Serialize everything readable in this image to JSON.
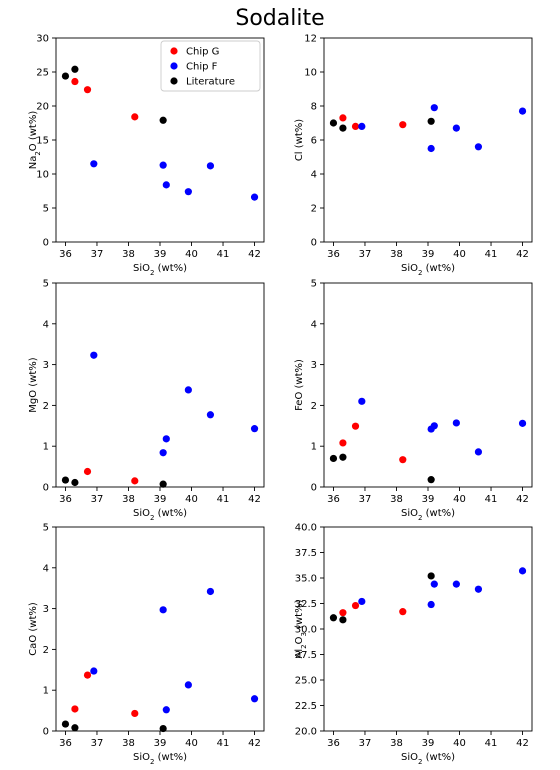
{
  "figure": {
    "title": "Sodalite"
  },
  "legend": {
    "placement": "top-right of first panel",
    "entries": [
      {
        "name": "Chip G",
        "color": "#ff0000"
      },
      {
        "name": "Chip F",
        "color": "#0000ff"
      },
      {
        "name": "Literature",
        "color": "#000000"
      }
    ]
  },
  "colors": {
    "chip_g": "#ff0000",
    "chip_f": "#0000ff",
    "literature": "#000000"
  },
  "chart_data": [
    {
      "type": "scatter",
      "xlabel": "SiO2 (wt%)",
      "ylabel": "Na2O (wt%)",
      "xlim": [
        35.7,
        42.3
      ],
      "ylim": [
        0,
        30
      ],
      "xticks": [
        "36",
        "37",
        "38",
        "39",
        "40",
        "41",
        "42"
      ],
      "yticks": [
        "0",
        "5",
        "10",
        "15",
        "20",
        "25",
        "30"
      ],
      "series": [
        {
          "name": "Chip G",
          "x": [
            36.3,
            36.7,
            38.2
          ],
          "y": [
            23.6,
            22.4,
            18.4
          ]
        },
        {
          "name": "Chip F",
          "x": [
            36.9,
            39.1,
            39.2,
            39.9,
            40.6,
            42.0
          ],
          "y": [
            11.5,
            11.3,
            8.4,
            7.4,
            11.2,
            6.6
          ]
        },
        {
          "name": "Literature",
          "x": [
            36.0,
            36.3,
            39.1
          ],
          "y": [
            24.4,
            25.4,
            17.9
          ]
        }
      ]
    },
    {
      "type": "scatter",
      "xlabel": "SiO2 (wt%)",
      "ylabel": "Cl (wt%)",
      "xlim": [
        35.7,
        42.3
      ],
      "ylim": [
        0,
        12
      ],
      "xticks": [
        "36",
        "37",
        "38",
        "39",
        "40",
        "41",
        "42"
      ],
      "yticks": [
        "0",
        "2",
        "4",
        "6",
        "8",
        "10",
        "12"
      ],
      "series": [
        {
          "name": "Chip G",
          "x": [
            36.3,
            36.7,
            38.2
          ],
          "y": [
            7.3,
            6.8,
            6.9
          ]
        },
        {
          "name": "Chip F",
          "x": [
            36.9,
            39.1,
            39.2,
            39.9,
            40.6,
            42.0
          ],
          "y": [
            6.8,
            5.5,
            7.9,
            6.7,
            5.6,
            7.7
          ]
        },
        {
          "name": "Literature",
          "x": [
            36.0,
            36.3,
            39.1
          ],
          "y": [
            7.0,
            6.7,
            7.1
          ]
        }
      ]
    },
    {
      "type": "scatter",
      "xlabel": "SiO2 (wt%)",
      "ylabel": "MgO (wt%)",
      "xlim": [
        35.7,
        42.3
      ],
      "ylim": [
        0,
        5
      ],
      "xticks": [
        "36",
        "37",
        "38",
        "39",
        "40",
        "41",
        "42"
      ],
      "yticks": [
        "0",
        "1",
        "2",
        "3",
        "4",
        "5"
      ],
      "series": [
        {
          "name": "Chip G",
          "x": [
            36.7,
            38.2
          ],
          "y": [
            0.38,
            0.15
          ]
        },
        {
          "name": "Chip F",
          "x": [
            36.9,
            39.1,
            39.2,
            39.9,
            40.6,
            42.0
          ],
          "y": [
            3.23,
            0.84,
            1.18,
            2.38,
            1.77,
            1.43
          ]
        },
        {
          "name": "Literature",
          "x": [
            36.0,
            36.3,
            39.1
          ],
          "y": [
            0.17,
            0.11,
            0.07
          ]
        }
      ]
    },
    {
      "type": "scatter",
      "xlabel": "SiO2 (wt%)",
      "ylabel": "FeO (wt%)",
      "xlim": [
        35.7,
        42.3
      ],
      "ylim": [
        0,
        5
      ],
      "xticks": [
        "36",
        "37",
        "38",
        "39",
        "40",
        "41",
        "42"
      ],
      "yticks": [
        "0",
        "1",
        "2",
        "3",
        "4",
        "5"
      ],
      "series": [
        {
          "name": "Chip G",
          "x": [
            36.3,
            36.7,
            38.2
          ],
          "y": [
            1.08,
            1.49,
            0.67
          ]
        },
        {
          "name": "Chip F",
          "x": [
            36.9,
            39.1,
            39.2,
            39.9,
            40.6,
            42.0
          ],
          "y": [
            2.1,
            1.42,
            1.5,
            1.57,
            0.86,
            1.56
          ]
        },
        {
          "name": "Literature",
          "x": [
            36.0,
            36.3,
            39.1
          ],
          "y": [
            0.7,
            0.73,
            0.18
          ]
        }
      ]
    },
    {
      "type": "scatter",
      "xlabel": "SiO2 (wt%)",
      "ylabel": "CaO (wt%)",
      "xlim": [
        35.7,
        42.3
      ],
      "ylim": [
        0,
        5
      ],
      "xticks": [
        "36",
        "37",
        "38",
        "39",
        "40",
        "41",
        "42"
      ],
      "yticks": [
        "0",
        "1",
        "2",
        "3",
        "4",
        "5"
      ],
      "series": [
        {
          "name": "Chip G",
          "x": [
            36.3,
            36.7,
            38.2
          ],
          "y": [
            0.54,
            1.37,
            0.43
          ]
        },
        {
          "name": "Chip F",
          "x": [
            36.9,
            39.1,
            39.2,
            39.9,
            40.6,
            42.0
          ],
          "y": [
            1.47,
            2.97,
            0.52,
            1.13,
            3.42,
            0.79
          ]
        },
        {
          "name": "Literature",
          "x": [
            36.0,
            36.3,
            39.1
          ],
          "y": [
            0.17,
            0.08,
            0.06
          ]
        }
      ]
    },
    {
      "type": "scatter",
      "xlabel": "SiO2 (wt%)",
      "ylabel": "Al2O3 (wt%)",
      "xlim": [
        35.7,
        42.3
      ],
      "ylim": [
        20,
        40
      ],
      "xticks": [
        "36",
        "37",
        "38",
        "39",
        "40",
        "41",
        "42"
      ],
      "yticks": [
        "20.0",
        "22.5",
        "25.0",
        "27.5",
        "30.0",
        "32.5",
        "35.0",
        "37.5",
        "40.0"
      ],
      "series": [
        {
          "name": "Chip G",
          "x": [
            36.3,
            36.7,
            38.2
          ],
          "y": [
            31.6,
            32.3,
            31.7
          ]
        },
        {
          "name": "Chip F",
          "x": [
            36.9,
            39.1,
            39.2,
            39.9,
            40.6,
            42.0
          ],
          "y": [
            32.7,
            32.4,
            34.4,
            34.4,
            33.9,
            35.7
          ]
        },
        {
          "name": "Literature",
          "x": [
            36.0,
            36.3,
            39.1
          ],
          "y": [
            31.1,
            30.9,
            35.2
          ]
        }
      ]
    }
  ]
}
